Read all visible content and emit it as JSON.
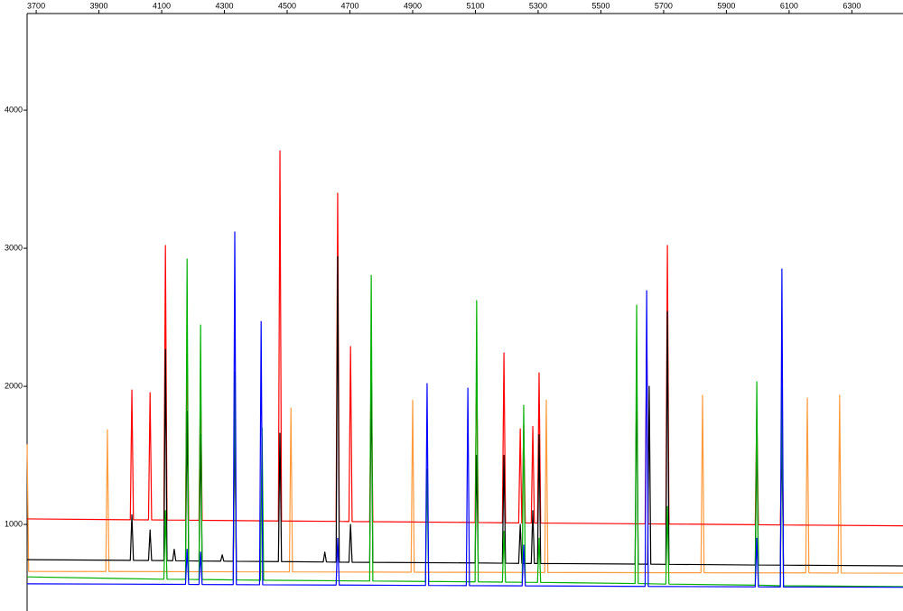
{
  "chart_data": {
    "type": "line",
    "xlim": [
      3671,
      6463
    ],
    "xticks": [
      3700,
      3900,
      4100,
      4300,
      4500,
      4700,
      4900,
      5100,
      5300,
      5500,
      5700,
      5900,
      6100,
      6300
    ],
    "ylim": [
      373,
      4700
    ],
    "yticks": [
      1000,
      2000,
      3000,
      4000
    ],
    "series": [
      {
        "color": "#ff9a3c",
        "x": [
          3671,
          3676,
          3922,
          3927,
          3932,
          4328,
          4333,
          4338,
          4507,
          4512,
          4517,
          4895,
          4900,
          4905,
          5321,
          5326,
          5331,
          5819,
          5824,
          5829,
          6153,
          6158,
          6163,
          6256,
          6261,
          6266,
          6463
        ],
        "values": [
          1580,
          660,
          659,
          1686,
          659,
          657,
          1750,
          657,
          656,
          1843,
          656,
          654,
          1900,
          654,
          652,
          1900,
          652,
          650,
          1935,
          650,
          649,
          1915,
          649,
          648,
          1935,
          648,
          647
        ]
      },
      {
        "color": "#ff0000",
        "x": [
          3671,
          4000,
          4005,
          4010,
          4058,
          4063,
          4068,
          4107,
          4112,
          4117,
          4176,
          4181,
          4186,
          4219,
          4224,
          4229,
          4472,
          4477,
          4482,
          4656,
          4661,
          4666,
          4697,
          4702,
          4707,
          4763,
          4768,
          4773,
          5099,
          5104,
          5109,
          5186,
          5191,
          5196,
          5238,
          5243,
          5248,
          5249,
          5254,
          5259,
          5278,
          5283,
          5288,
          5298,
          5303,
          5308,
          5641,
          5646,
          5651,
          5707,
          5712,
          5717,
          5992,
          5997,
          6002,
          6072,
          6077,
          6082,
          6463
        ],
        "values": [
          1040,
          1034,
          1974,
          1034,
          1033,
          1954,
          1033,
          1032,
          3020,
          1032,
          1031,
          2346,
          1031,
          1030,
          2050,
          1030,
          1025,
          3706,
          1025,
          1022,
          3399,
          1022,
          1021,
          2288,
          1021,
          1020,
          2248,
          1020,
          1014,
          2183,
          1014,
          1012,
          2242,
          1012,
          1011,
          1693,
          1011,
          1011,
          1720,
          1011,
          1010,
          1710,
          1010,
          1010,
          2098,
          1010,
          1004,
          2450,
          1004,
          1003,
          3020,
          1003,
          998,
          1824,
          998,
          996,
          1700,
          996,
          990
        ]
      },
      {
        "color": "#000000",
        "x": [
          3671,
          4000,
          4005,
          4010,
          4058,
          4063,
          4068,
          4107,
          4112,
          4117,
          4135,
          4140,
          4145,
          4176,
          4181,
          4186,
          4219,
          4224,
          4229,
          4288,
          4293,
          4298,
          4328,
          4333,
          4338,
          4472,
          4477,
          4482,
          4615,
          4620,
          4625,
          4656,
          4661,
          4666,
          4697,
          4702,
          4707,
          4763,
          4768,
          4773,
          5099,
          5104,
          5109,
          5186,
          5191,
          5196,
          5238,
          5243,
          5248,
          5278,
          5283,
          5288,
          5298,
          5303,
          5308,
          5609,
          5614,
          5619,
          5649,
          5654,
          5659,
          5707,
          5712,
          5717,
          5992,
          5997,
          6002,
          6072,
          6077,
          6082,
          6463
        ],
        "values": [
          745,
          740,
          1070,
          740,
          739,
          960,
          739,
          738,
          2268,
          738,
          737,
          820,
          737,
          736,
          1820,
          736,
          735,
          1650,
          735,
          734,
          780,
          734,
          733,
          1750,
          733,
          731,
          1660,
          731,
          728,
          800,
          728,
          727,
          2941,
          727,
          726,
          1000,
          726,
          725,
          2100,
          725,
          721,
          1500,
          721,
          719,
          1500,
          719,
          718,
          1000,
          718,
          717,
          1100,
          717,
          717,
          1650,
          717,
          713,
          2100,
          713,
          712,
          2000,
          712,
          711,
          2542,
          711,
          706,
          1700,
          706,
          705,
          1700,
          705,
          700
        ]
      },
      {
        "color": "#00b000",
        "x": [
          3671,
          4107,
          4112,
          4117,
          4176,
          4181,
          4186,
          4219,
          4224,
          4229,
          4328,
          4333,
          4338,
          4415,
          4420,
          4425,
          4763,
          4768,
          4773,
          4941,
          4946,
          4951,
          5099,
          5104,
          5109,
          5186,
          5191,
          5196,
          5249,
          5254,
          5259,
          5298,
          5303,
          5308,
          5609,
          5614,
          5619,
          5707,
          5712,
          5717,
          5992,
          5997,
          6002,
          6072,
          6077,
          6082,
          6463
        ],
        "values": [
          620,
          603,
          1100,
          603,
          602,
          2922,
          602,
          601,
          2444,
          601,
          598,
          2100,
          598,
          596,
          1700,
          596,
          590,
          2804,
          590,
          587,
          1400,
          587,
          584,
          2621,
          584,
          582,
          950,
          582,
          581,
          1863,
          581,
          580,
          900,
          580,
          572,
          2588,
          572,
          568,
          1130,
          568,
          560,
          2033,
          560,
          556,
          1990,
          556,
          550
        ]
      },
      {
        "color": "#0000ff",
        "x": [
          3671,
          4176,
          4181,
          4186,
          4219,
          4224,
          4229,
          4328,
          4333,
          4338,
          4412,
          4417,
          4422,
          4656,
          4661,
          4666,
          4941,
          4946,
          4951,
          5071,
          5076,
          5081,
          5249,
          5254,
          5259,
          5641,
          5646,
          5651,
          5992,
          5997,
          6002,
          6072,
          6077,
          6082,
          6463
        ],
        "values": [
          570,
          566,
          820,
          566,
          565,
          800,
          565,
          564,
          3118,
          564,
          563,
          2470,
          563,
          561,
          900,
          561,
          558,
          2020,
          558,
          557,
          1987,
          557,
          555,
          850,
          555,
          551,
          2693,
          551,
          548,
          900,
          548,
          547,
          2850,
          547,
          545
        ]
      }
    ]
  }
}
